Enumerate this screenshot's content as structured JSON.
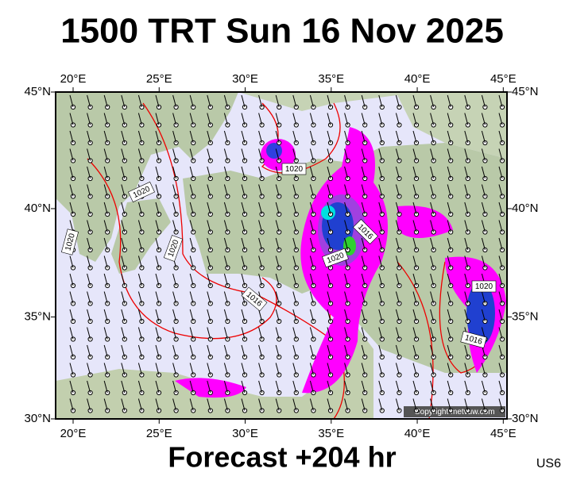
{
  "title": "1500 TRT Sun 16 Nov 2025",
  "footer": "Forecast +204 hr",
  "code": "US6",
  "copyright": "Copyright metvuw.com",
  "map": {
    "lonticks": [
      {
        "value": 20,
        "label": "20°E"
      },
      {
        "value": 25,
        "label": "25°E"
      },
      {
        "value": 30,
        "label": "30°E"
      },
      {
        "value": 35,
        "label": "35°E"
      },
      {
        "value": 40,
        "label": "40°E"
      },
      {
        "value": 45,
        "label": "45°E"
      }
    ],
    "latticks": [
      {
        "value": 45,
        "label": "45°N"
      },
      {
        "value": 40,
        "label": "40°N"
      },
      {
        "value": 35,
        "label": "35°N"
      },
      {
        "value": 30,
        "label": "30°N"
      }
    ],
    "isobar_labels": [
      1020,
      1020,
      1020,
      1020,
      1016,
      1020,
      1016,
      1020,
      1016
    ]
  }
}
